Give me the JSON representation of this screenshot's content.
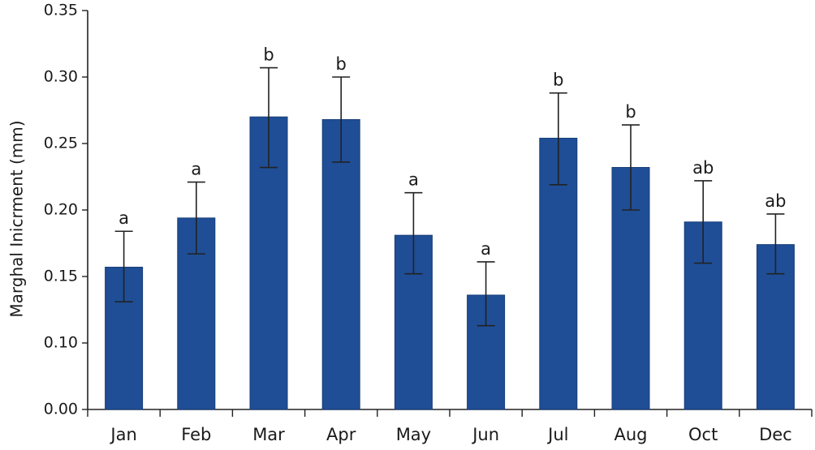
{
  "chart_data": {
    "type": "bar",
    "title": "",
    "xlabel": "",
    "ylabel": "Marghal Inicrment (mm)",
    "ylim": [
      0.0,
      0.35
    ],
    "y_break": "axis break between 0.00 and 0.10",
    "y_ticks": [
      "0.00",
      "0.10",
      "0.15",
      "0.20",
      "0.25",
      "0.30",
      "0.35"
    ],
    "grid": false,
    "legend": "none",
    "bar_color": "#1f4e96",
    "categories": [
      "Jan",
      "Feb",
      "Mar",
      "Apr",
      "May",
      "Jun",
      "Jul",
      "Aug",
      "Oct",
      "Dec"
    ],
    "values": [
      0.157,
      0.194,
      0.27,
      0.268,
      0.181,
      0.136,
      0.254,
      0.232,
      0.191,
      0.174
    ],
    "error_lower": [
      0.131,
      0.167,
      0.232,
      0.236,
      0.152,
      0.113,
      0.219,
      0.2,
      0.16,
      0.152
    ],
    "error_upper": [
      0.184,
      0.221,
      0.307,
      0.3,
      0.213,
      0.161,
      0.288,
      0.264,
      0.222,
      0.197
    ],
    "annotations": [
      "a",
      "a",
      "b",
      "b",
      "a",
      "a",
      "b",
      "b",
      "ab",
      "ab"
    ]
  }
}
